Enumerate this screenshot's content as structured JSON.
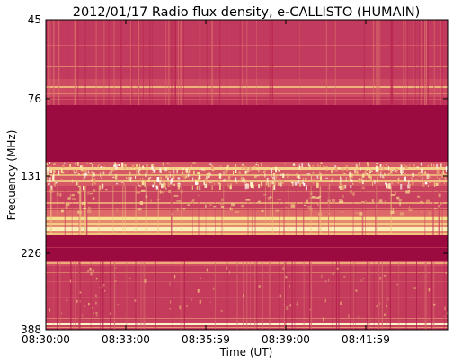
{
  "chart_data": {
    "type": "heatmap",
    "title": "2012/01/17  Radio flux density, e-CALLISTO (HUMAIN)",
    "xlabel": "Time (UT)",
    "ylabel": "Frequency (MHz)",
    "x_ticks": [
      "08:30:00",
      "08:33:00",
      "08:35:59",
      "08:39:00",
      "08:41:59"
    ],
    "y_ticks": [
      "45",
      "76",
      "131",
      "226",
      "388"
    ],
    "y_axis": "frequency increases downward, 45 MHz at top to 388 MHz at bottom",
    "colormap": "dark crimson to pink to yellow to white (low to high intensity)",
    "colors": {
      "low": "#9c0b40",
      "mid": "#c43b5c",
      "high": "#f6e08a",
      "peak": "#fff8d8"
    },
    "bands": [
      {
        "from_mhz": 45,
        "to_mhz": 76,
        "level": "moderate, speckled with bright lines near 70 MHz"
      },
      {
        "from_mhz": 76,
        "to_mhz": 118,
        "level": "saturated low (uniform dark band)"
      },
      {
        "from_mhz": 118,
        "to_mhz": 131,
        "level": "strong bright bursty emission"
      },
      {
        "from_mhz": 131,
        "to_mhz": 165,
        "level": "moderate with faint horizontal lines"
      },
      {
        "from_mhz": 165,
        "to_mhz": 200,
        "level": "multiple bright horizontal bands"
      },
      {
        "from_mhz": 200,
        "to_mhz": 226,
        "level": "saturated low (dark band)"
      },
      {
        "from_mhz": 226,
        "to_mhz": 388,
        "level": "moderate, faint lines, bright line near 375 MHz"
      }
    ]
  }
}
